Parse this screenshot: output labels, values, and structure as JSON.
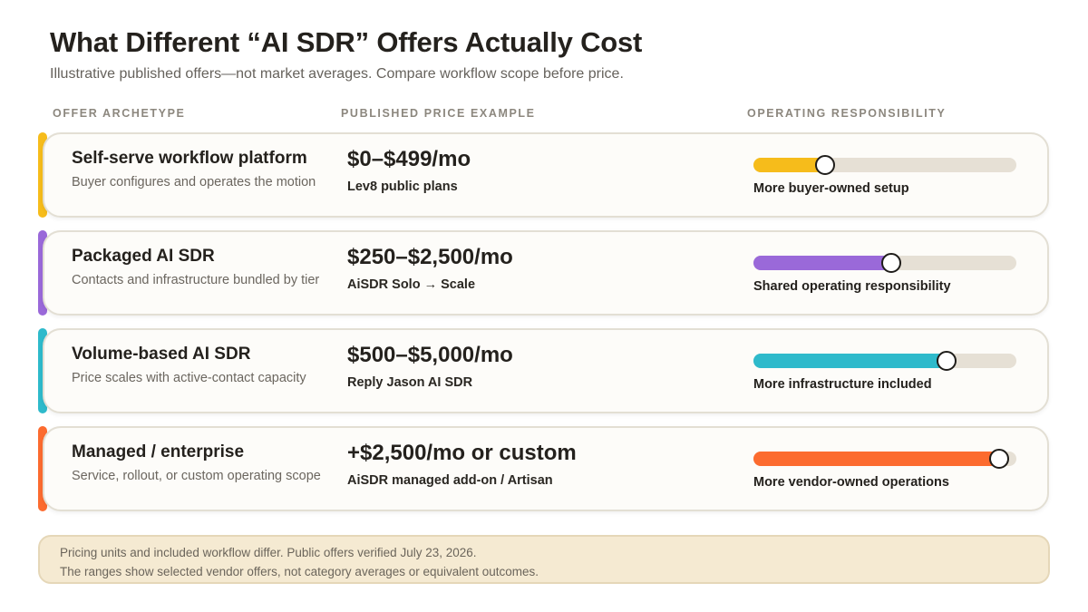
{
  "title": "What Different “AI SDR” Offers Actually Cost",
  "subtitle": "Illustrative published offers—not market averages. Compare workflow scope before price.",
  "columns": {
    "archetype": "OFFER ARCHETYPE",
    "price": "PUBLISHED PRICE EXAMPLE",
    "responsibility": "OPERATING RESPONSIBILITY"
  },
  "rows": [
    {
      "name": "Self-serve workflow platform",
      "description": "Buyer configures and operates the motion",
      "price": "$0–$499/mo",
      "example": "Lev8 public plans",
      "responsibility_label": "More buyer-owned setup",
      "responsibility_level": 0.27,
      "color": "#f6bc1b"
    },
    {
      "name": "Packaged AI SDR",
      "description": "Contacts and infrastructure bundled by tier",
      "price": "$250–$2,500/mo",
      "example": "AiSDR Solo → Scale",
      "responsibility_label": "Shared operating responsibility",
      "responsibility_level": 0.52,
      "color": "#9a69d9"
    },
    {
      "name": "Volume-based AI SDR",
      "description": "Price scales with active-contact capacity",
      "price": "$500–$5,000/mo",
      "example": "Reply Jason AI SDR",
      "responsibility_label": "More infrastructure included",
      "responsibility_level": 0.73,
      "color": "#2ebacb"
    },
    {
      "name": "Managed / enterprise",
      "description": "Service, rollout, or custom operating scope",
      "price": "+$2,500/mo or custom",
      "example": "AiSDR managed add-on / Artisan",
      "responsibility_label": "More vendor-owned operations",
      "responsibility_level": 0.93,
      "color": "#fc6b2f"
    }
  ],
  "note": {
    "line1": "Pricing units and included workflow differ. Public offers verified July 23, 2026.",
    "line2": "The ranges show selected vendor offers, not category averages or equivalent outcomes."
  }
}
